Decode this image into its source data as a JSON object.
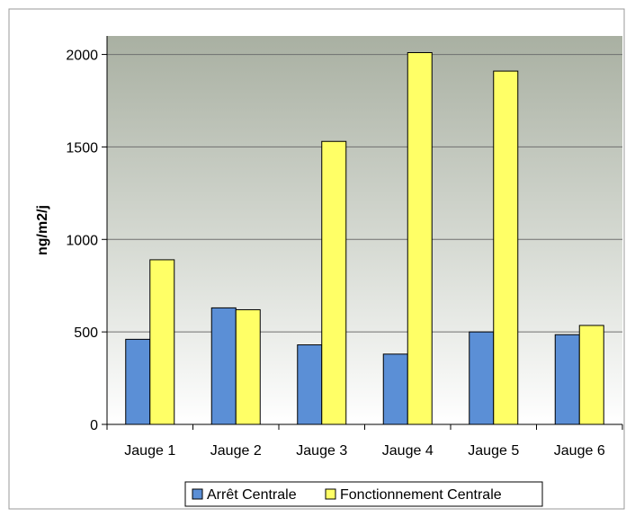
{
  "chart_data": {
    "type": "bar",
    "title": "",
    "xlabel": "",
    "ylabel": "ng/m2/j",
    "categories": [
      "Jauge 1",
      "Jauge 2",
      "Jauge 3",
      "Jauge 4",
      "Jauge 5",
      "Jauge 6"
    ],
    "series": [
      {
        "name": "Arrêt Centrale",
        "color": "#5b8fd6",
        "values": [
          460,
          630,
          430,
          380,
          500,
          485
        ]
      },
      {
        "name": "Fonctionnement Centrale",
        "color": "#ffff66",
        "values": [
          890,
          620,
          1530,
          2010,
          1910,
          535
        ]
      }
    ],
    "ylim": [
      0,
      2000
    ],
    "yticks": [
      0,
      500,
      1000,
      1500,
      2000
    ],
    "grid": true,
    "legend_position": "bottom"
  }
}
